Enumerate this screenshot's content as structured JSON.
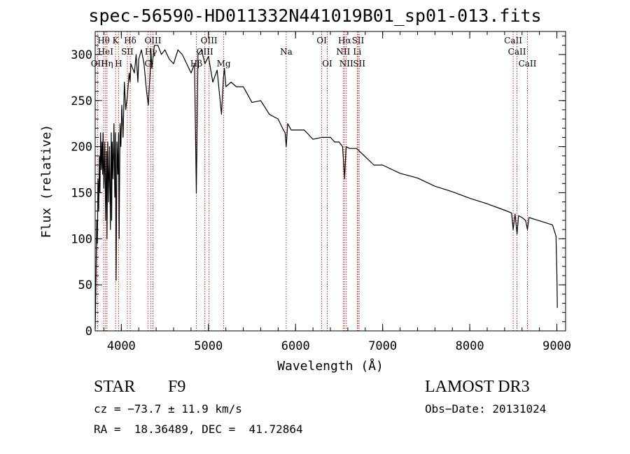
{
  "chart_data": {
    "type": "line",
    "title": "spec-56590-HD011332N441019B01_sp01-013.fits",
    "xlabel": "Wavelength (Å)",
    "ylabel": "Flux (relative)",
    "xlim": [
      3700,
      9100
    ],
    "ylim": [
      0,
      325
    ],
    "xticks": [
      4000,
      5000,
      6000,
      7000,
      8000,
      9000
    ],
    "yticks": [
      0,
      50,
      100,
      150,
      200,
      250,
      300
    ],
    "x_minor_step": 200,
    "y_minor_step": 10,
    "series": [
      {
        "name": "flux",
        "x": [
          3700,
          3705,
          3712,
          3718,
          3725,
          3732,
          3740,
          3748,
          3755,
          3762,
          3770,
          3778,
          3785,
          3790,
          3800,
          3810,
          3820,
          3830,
          3835,
          3845,
          3855,
          3865,
          3875,
          3885,
          3889,
          3895,
          3905,
          3915,
          3925,
          3933,
          3940,
          3950,
          3960,
          3968,
          3975,
          3985,
          3995,
          4005,
          4020,
          4035,
          4050,
          4070,
          4090,
          4101,
          4110,
          4130,
          4150,
          4170,
          4190,
          4200,
          4230,
          4260,
          4290,
          4310,
          4330,
          4340,
          4350,
          4380,
          4420,
          4460,
          4500,
          4550,
          4600,
          4650,
          4700,
          4750,
          4800,
          4840,
          4861,
          4880,
          4920,
          4960,
          5000,
          5050,
          5100,
          5150,
          5172,
          5183,
          5200,
          5260,
          5320,
          5400,
          5500,
          5600,
          5700,
          5800,
          5850,
          5880,
          5893,
          5910,
          5950,
          6000,
          6100,
          6200,
          6300,
          6400,
          6450,
          6500,
          6540,
          6563,
          6580,
          6620,
          6700,
          6800,
          6900,
          7000,
          7200,
          7400,
          7600,
          7800,
          8000,
          8200,
          8400,
          8480,
          8498,
          8520,
          8542,
          8560,
          8600,
          8640,
          8662,
          8680,
          8750,
          8850,
          8950,
          8990,
          9000,
          9005
        ],
        "y": [
          2,
          30,
          75,
          120,
          95,
          165,
          130,
          190,
          150,
          215,
          175,
          205,
          170,
          215,
          155,
          205,
          120,
          195,
          100,
          205,
          140,
          200,
          110,
          215,
          120,
          205,
          165,
          225,
          145,
          215,
          55,
          205,
          170,
          215,
          100,
          225,
          200,
          245,
          210,
          270,
          240,
          255,
          280,
          270,
          290,
          285,
          280,
          300,
          270,
          295,
          305,
          290,
          260,
          245,
          280,
          305,
          285,
          310,
          310,
          300,
          305,
          295,
          290,
          305,
          300,
          290,
          280,
          290,
          150,
          300,
          305,
          290,
          298,
          270,
          283,
          235,
          275,
          285,
          265,
          270,
          265,
          265,
          248,
          250,
          235,
          230,
          220,
          215,
          200,
          225,
          218,
          218,
          218,
          208,
          210,
          210,
          205,
          205,
          200,
          165,
          200,
          198,
          198,
          189,
          180,
          180,
          171,
          166,
          157,
          151,
          144,
          138,
          131,
          128,
          110,
          127,
          105,
          125,
          123,
          120,
          110,
          123,
          121,
          118,
          115,
          103,
          60,
          25
        ]
      }
    ],
    "lines": [
      {
        "name": "Hθ",
        "x": 3797,
        "row": 1
      },
      {
        "name": "HeI",
        "x": 3819,
        "row": 2
      },
      {
        "name": "OII",
        "x": 3727,
        "row": 3
      },
      {
        "name": "Hη",
        "x": 3835,
        "row": 3
      },
      {
        "name": "K",
        "x": 3934,
        "row": 1
      },
      {
        "name": "SII",
        "x": 4069,
        "row": 2
      },
      {
        "name": "H",
        "x": 3968,
        "row": 3
      },
      {
        "name": "Hδ",
        "x": 4102,
        "row": 1
      },
      {
        "name": "OIII",
        "x": 4363,
        "row": 1
      },
      {
        "name": "Hγ",
        "x": 4340,
        "row": 2
      },
      {
        "name": "G",
        "x": 4305,
        "row": 3
      },
      {
        "name": "Hβ",
        "x": 4861,
        "row": 3
      },
      {
        "name": "OIII",
        "x": 5007,
        "row": 1
      },
      {
        "name": "OIII",
        "x": 4959,
        "row": 2
      },
      {
        "name": "Mg",
        "x": 5175,
        "row": 3
      },
      {
        "name": "Na",
        "x": 5893,
        "row": 2
      },
      {
        "name": "OI",
        "x": 6300,
        "row": 1
      },
      {
        "name": "OI",
        "x": 6364,
        "row": 3
      },
      {
        "name": "Hα",
        "x": 6563,
        "row": 1
      },
      {
        "name": "NII",
        "x": 6548,
        "row": 2
      },
      {
        "name": "NII",
        "x": 6583,
        "row": 3
      },
      {
        "name": "SII",
        "x": 6717,
        "row": 1
      },
      {
        "name": "Li",
        "x": 6708,
        "row": 2
      },
      {
        "name": "SII",
        "x": 6731,
        "row": 3
      },
      {
        "name": "CaII",
        "x": 8498,
        "row": 1
      },
      {
        "name": "CaII",
        "x": 8542,
        "row": 2
      },
      {
        "name": "CaII",
        "x": 8662,
        "row": 3
      }
    ]
  },
  "info": {
    "object_type": "STAR",
    "subclass": "F9",
    "survey": "LAMOST DR3",
    "cz": "cz = −73.7 ± 11.9 km/s",
    "obs_date": "Obs−Date: 20131024",
    "radec": "RA =  18.36489, DEC =  41.72864"
  }
}
